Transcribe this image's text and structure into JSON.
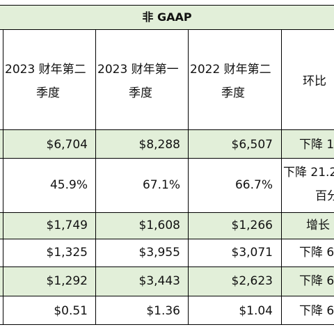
{
  "title": "非 GAAP",
  "headers": {
    "col1": [
      "2023 财年第二",
      "季度"
    ],
    "col2": [
      "2023 财年第一",
      "季度"
    ],
    "col3": [
      "2022 财年第二",
      "季度"
    ],
    "col4": [
      "环比"
    ]
  },
  "rows": [
    {
      "c1": "$6,704",
      "c2": "$8,288",
      "c3": "$6,507",
      "c4": [
        "下降 1"
      ]
    },
    {
      "c1": "45.9%",
      "c2": "67.1%",
      "c3": "66.7%",
      "c4": [
        "下降 21.2",
        "百分"
      ]
    },
    {
      "c1": "$1,749",
      "c2": "$1,608",
      "c3": "$1,266",
      "c4": [
        "增长"
      ]
    },
    {
      "c1": "$1,325",
      "c2": "$3,955",
      "c3": "$3,071",
      "c4": [
        "下降 6"
      ]
    },
    {
      "c1": "$1,292",
      "c2": "$3,443",
      "c3": "$2,623",
      "c4": [
        "下降 6"
      ]
    },
    {
      "c1": "$0.51",
      "c2": "$1.36",
      "c3": "$1.04",
      "c4": [
        "下降 6"
      ]
    }
  ],
  "colors": {
    "band": "#e2efd9",
    "grid": "#000000"
  }
}
